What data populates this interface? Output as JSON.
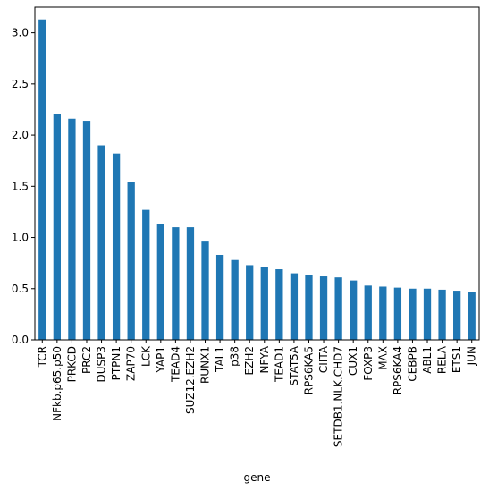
{
  "chart_data": {
    "type": "bar",
    "title": "",
    "xlabel": "gene",
    "ylabel": "",
    "ylim": [
      0,
      3.25
    ],
    "yticks": [
      0.0,
      0.5,
      1.0,
      1.5,
      2.0,
      2.5,
      3.0
    ],
    "ytick_labels": [
      "0.0",
      "0.5",
      "1.0",
      "1.5",
      "2.0",
      "2.5",
      "3.0"
    ],
    "grid": false,
    "bar_color": "#1f77b4",
    "categories": [
      "TCR",
      "NFkb.p65.p50",
      "PRKCD",
      "PRC2",
      "DUSP3",
      "PTPN1",
      "ZAP70",
      "LCK",
      "YAP1",
      "TEAD4",
      "SUZ12.EZH2",
      "RUNX1",
      "TAL1",
      "p38",
      "EZH2",
      "NFYA",
      "TEAD1",
      "STAT5A",
      "RPS6KA5",
      "CIITA",
      "SETDB1.NLK.CHD7",
      "CUX1",
      "FOXP3",
      "MAX",
      "RPS6KA4",
      "CEBPB",
      "ABL1",
      "RELA",
      "ETS1",
      "JUN"
    ],
    "values": [
      3.13,
      2.21,
      2.16,
      2.14,
      1.9,
      1.82,
      1.54,
      1.27,
      1.13,
      1.1,
      1.1,
      0.96,
      0.83,
      0.78,
      0.73,
      0.71,
      0.69,
      0.65,
      0.63,
      0.62,
      0.61,
      0.58,
      0.53,
      0.52,
      0.51,
      0.5,
      0.5,
      0.49,
      0.48,
      0.47
    ]
  }
}
